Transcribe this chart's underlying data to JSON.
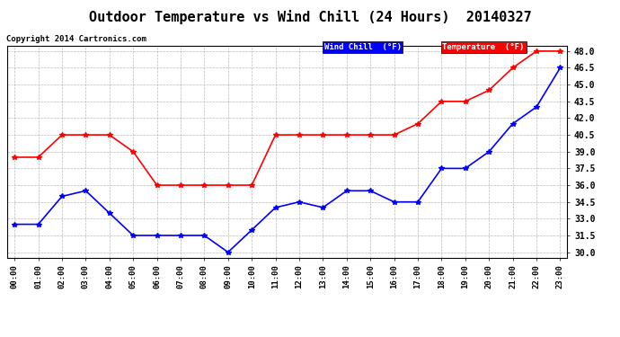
{
  "title": "Outdoor Temperature vs Wind Chill (24 Hours)  20140327",
  "copyright": "Copyright 2014 Cartronics.com",
  "xlim": [
    0,
    23
  ],
  "ylim": [
    29.5,
    48.5
  ],
  "yticks": [
    30.0,
    31.5,
    33.0,
    34.5,
    36.0,
    37.5,
    39.0,
    40.5,
    42.0,
    43.5,
    45.0,
    46.5,
    48.0
  ],
  "hours": [
    0,
    1,
    2,
    3,
    4,
    5,
    6,
    7,
    8,
    9,
    10,
    11,
    12,
    13,
    14,
    15,
    16,
    17,
    18,
    19,
    20,
    21,
    22,
    23
  ],
  "wind_chill": [
    32.5,
    32.5,
    35.0,
    35.5,
    33.5,
    31.5,
    31.5,
    31.5,
    31.5,
    30.0,
    32.0,
    34.0,
    34.5,
    34.0,
    35.5,
    35.5,
    34.5,
    34.5,
    37.5,
    37.5,
    39.0,
    41.5,
    43.0,
    46.5
  ],
  "temperature": [
    38.5,
    38.5,
    40.5,
    40.5,
    40.5,
    39.0,
    36.0,
    36.0,
    36.0,
    36.0,
    36.0,
    40.5,
    40.5,
    40.5,
    40.5,
    40.5,
    40.5,
    41.5,
    43.5,
    43.5,
    44.5,
    46.5,
    48.0,
    48.0
  ],
  "wind_chill_color": "#0000ff",
  "temperature_color": "#ff0000",
  "bg_color": "#ffffff",
  "grid_color": "#aaaaaa",
  "title_fontsize": 11,
  "xtick_labels": [
    "00:00",
    "01:00",
    "02:00",
    "03:00",
    "04:00",
    "05:00",
    "06:00",
    "07:00",
    "08:00",
    "09:00",
    "10:00",
    "11:00",
    "12:00",
    "13:00",
    "14:00",
    "15:00",
    "16:00",
    "17:00",
    "18:00",
    "19:00",
    "20:00",
    "21:00",
    "22:00",
    "23:00"
  ],
  "legend_wc_text": "Wind Chill  (°F)",
  "legend_temp_text": "Temperature  (°F)"
}
